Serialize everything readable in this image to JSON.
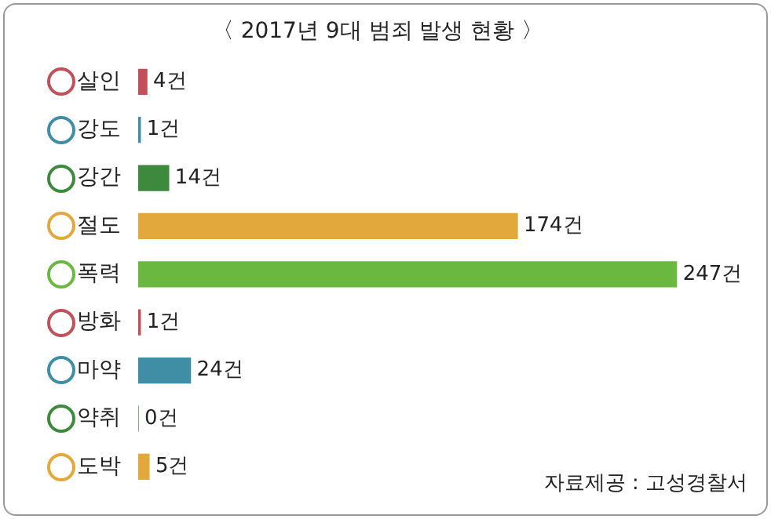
{
  "chart_data": {
    "type": "bar",
    "orientation": "horizontal",
    "title": "〈 2017년 9대 범죄 발생 현황 〉",
    "categories": [
      "살인",
      "강도",
      "강간",
      "절도",
      "폭력",
      "방화",
      "마약",
      "약취",
      "도박"
    ],
    "values": [
      4,
      1,
      14,
      174,
      247,
      1,
      24,
      0,
      5
    ],
    "value_labels": [
      "4건",
      "1건",
      "14건",
      "174건",
      "247건",
      "1건",
      "24건",
      "0건",
      "5건"
    ],
    "colors": [
      "#c0505a",
      "#3f8ea5",
      "#3d8a3e",
      "#e2a83c",
      "#6ab83f",
      "#c0505a",
      "#3f8ea5",
      "#3d8a3e",
      "#e2a83c"
    ],
    "tick_labels": "y",
    "grid": false,
    "legend": false,
    "annotations": [
      "자료제공 : 고성경찰서"
    ]
  }
}
